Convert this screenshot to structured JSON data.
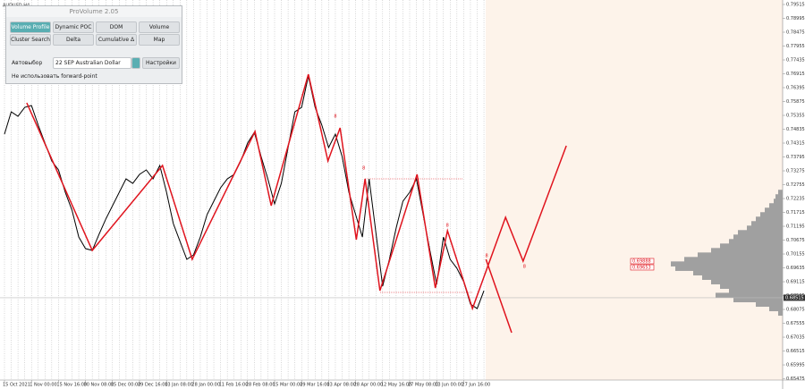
{
  "chart_data": {
    "type": "line",
    "title": "AUDUSD,H4",
    "color": "#000000",
    "categories": [
      "15 Oct 2021",
      null,
      null,
      null,
      "1 Nov 00:00",
      null,
      null,
      null,
      "15 Nov 16:00",
      null,
      null,
      null,
      "30 Nov 08:00",
      null,
      null,
      null,
      "15 Dec 00:00",
      null,
      null,
      null,
      "29 Dec 16:00",
      null,
      null,
      null,
      "13 Jan 08:00",
      null,
      null,
      null,
      "28 Jan 00:00",
      null,
      null,
      null,
      "11 Feb 16:00",
      null,
      null,
      null,
      "28 Feb 08:00",
      null,
      null,
      null,
      "15 Mar 00:00",
      null,
      null,
      null,
      "29 Mar 16:00",
      null,
      null,
      null,
      "13 Apr 08:00",
      null,
      null,
      null,
      "28 Apr 00:00",
      null,
      null,
      null,
      "12 May 16:00",
      null,
      null,
      null,
      "27 May 08:00",
      null,
      null,
      null,
      "13 Jun 00:00",
      null,
      null,
      null,
      "27 Jun 16:00",
      null,
      null,
      null
    ],
    "values": [
      0.74651,
      0.75489,
      0.75321,
      0.75657,
      0.75724,
      0.74986,
      0.74315,
      0.73644,
      0.73309,
      0.7247,
      0.71799,
      0.70792,
      0.70356,
      0.70289,
      0.70893,
      0.71463,
      0.71967,
      0.7247,
      0.72973,
      0.72805,
      0.73141,
      0.73309,
      0.72973,
      0.73476,
      0.7247,
      0.71296,
      0.70625,
      0.69954,
      0.70121,
      0.70792,
      0.71631,
      0.72134,
      0.72638,
      0.72973,
      0.73141,
      0.73644,
      0.74315,
      0.74718,
      0.73812,
      0.72973,
      0.72034,
      0.72805,
      0.74147,
      0.75489,
      0.75657,
      0.76831,
      0.75657,
      0.74986,
      0.74147,
      0.74651,
      0.73812,
      0.7247,
      0.71631,
      0.70792,
      0.72973,
      0.7096,
      0.68947,
      0.69954,
      0.71128,
      0.72134,
      0.7247,
      0.72973,
      0.71631,
      0.70289,
      0.69014,
      0.70792,
      0.69954,
      0.69618,
      0.69115,
      0.68276,
      0.68108,
      0.68779
    ],
    "ylim": [
      0.65426,
      0.79683
    ],
    "yticks": [
      0.79515,
      0.78995,
      0.78475,
      0.77955,
      0.77435,
      0.76915,
      0.76395,
      0.75875,
      0.75355,
      0.74835,
      0.74315,
      0.73795,
      0.73275,
      0.72755,
      0.72235,
      0.71715,
      0.71195,
      0.70675,
      0.70155,
      0.69635,
      0.69115,
      0.68595,
      0.68075,
      0.67555,
      0.67035,
      0.66515,
      0.65995,
      0.65475
    ],
    "last_price": {
      "value": 0.68515,
      "label": "0.68515"
    },
    "price_labels": [
      {
        "value": 0.69888,
        "label": "0.69888"
      },
      {
        "value": 0.69653,
        "label": "0.69653"
      }
    ],
    "zigzag": {
      "color": "#e0141e",
      "x": [
        3.3,
        13,
        23.4,
        27.8,
        37.1,
        39.5,
        45,
        47.9,
        49.7,
        52.1,
        53.4,
        55.6,
        61.1,
        63.8,
        65.6,
        69.3,
        74.2,
        76.8,
        83.2
      ],
      "values": [
        0.75825,
        0.70289,
        0.73476,
        0.69954,
        0.74751,
        0.71967,
        0.76898,
        0.73644,
        0.74885,
        0.70692,
        0.72973,
        0.68779,
        0.73141,
        0.6888,
        0.71027,
        0.68108,
        0.7153,
        0.69887,
        0.74214
      ]
    },
    "branch": {
      "color": "#e0141e",
      "x": [
        71.3,
        75.1
      ],
      "values": [
        0.69954,
        0.67203
      ]
    },
    "annotations": [
      {
        "text": "8",
        "x": 49,
        "y": 0.75321
      },
      {
        "text": "8",
        "x": 53.2,
        "y": 0.73375
      },
      {
        "text": "8",
        "x": 65.6,
        "y": 0.71228
      },
      {
        "text": "8",
        "x": 71.4,
        "y": 0.70088
      },
      {
        "text": "8",
        "x": 77,
        "y": 0.69685
      }
    ],
    "volume_profile": {
      "color": "#a0a0a0",
      "prices": [
        0.7247,
        0.72302,
        0.72134,
        0.71966,
        0.71798,
        0.7163,
        0.71462,
        0.71294,
        0.71126,
        0.70958,
        0.7079,
        0.70622,
        0.70454,
        0.70286,
        0.70118,
        0.6995,
        0.69782,
        0.69614,
        0.69446,
        0.69278,
        0.6911,
        0.68942,
        0.68774,
        0.68606,
        0.68438,
        0.6827,
        0.68102,
        0.67934
      ],
      "values": [
        5,
        8,
        10,
        15,
        20,
        25,
        30,
        35,
        40,
        50,
        55,
        60,
        70,
        80,
        95,
        110,
        125,
        120,
        100,
        90,
        80,
        70,
        60,
        75,
        55,
        30,
        15,
        5
      ]
    }
  },
  "panel": {
    "title": "ProVolume 2.05",
    "buttons": [
      "Volume Profile",
      "Dynamic POC",
      "DOM",
      "Volume",
      "Cluster Search",
      "Delta",
      "Cumulative Δ",
      "Map"
    ],
    "auto": "Автовыбор",
    "instrument": "22 SEP Australian Dollar",
    "settings": "Настройки",
    "forward": "Не использовать forward-point"
  }
}
